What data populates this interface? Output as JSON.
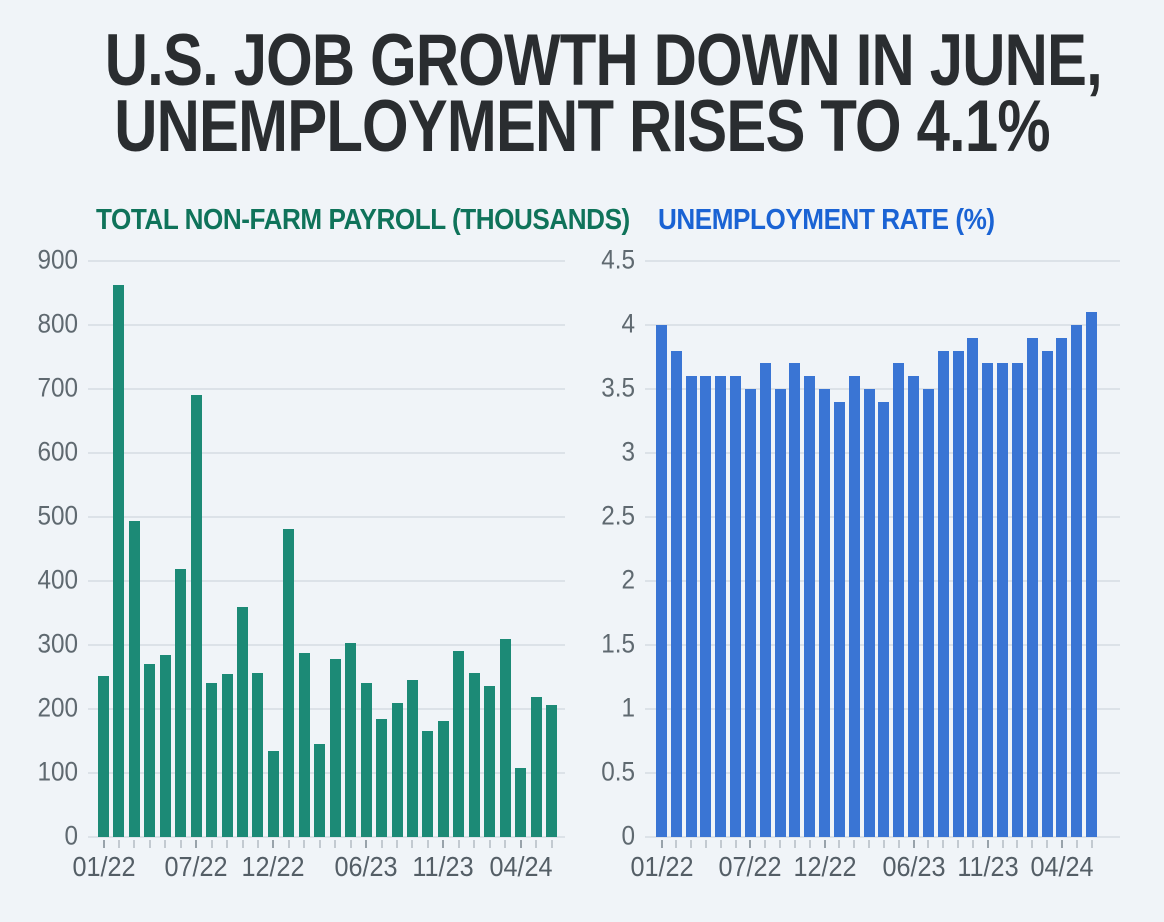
{
  "page": {
    "background": "#f0f4f8",
    "headline_color": "#2a2d30"
  },
  "title": {
    "line1": "U.S. JOB GROWTH DOWN IN JUNE,",
    "line2": "UNEMPLOYMENT RISES TO 4.1%"
  },
  "chart_data": [
    {
      "type": "bar",
      "title": "TOTAL NON-FARM PAYROLL (THOUSANDS)",
      "title_color": "#0f735a",
      "bar_color": "#1c8a76",
      "xlabel": "",
      "ylabel": "",
      "ylim": [
        0,
        900
      ],
      "y_tick_step": 100,
      "y_tick_labels": [
        "900",
        "800",
        "700",
        "600",
        "500",
        "400",
        "300",
        "200",
        "100",
        "0"
      ],
      "grid": true,
      "legend": "none",
      "categories": [
        "01/22",
        "02/22",
        "03/22",
        "04/22",
        "05/22",
        "06/22",
        "07/22",
        "08/22",
        "09/22",
        "10/22",
        "11/22",
        "12/22",
        "01/23",
        "02/23",
        "03/23",
        "04/23",
        "05/23",
        "06/23",
        "07/23",
        "08/23",
        "09/23",
        "10/23",
        "11/23",
        "12/23",
        "01/24",
        "02/24",
        "03/24",
        "04/24",
        "05/24",
        "06/24"
      ],
      "values": [
        252,
        862,
        493,
        271,
        285,
        419,
        690,
        241,
        254,
        359,
        257,
        135,
        482,
        287,
        146,
        278,
        303,
        240,
        184,
        210,
        246,
        165,
        182,
        290,
        256,
        236,
        310,
        108,
        218,
        206
      ],
      "x_tick_labels": [
        {
          "index": 0,
          "label": "01/22"
        },
        {
          "index": 6,
          "label": "07/22"
        },
        {
          "index": 11,
          "label": "12/22"
        },
        {
          "index": 17,
          "label": "06/23"
        },
        {
          "index": 22,
          "label": "11/23"
        },
        {
          "index": 27,
          "label": "04/24"
        }
      ]
    },
    {
      "type": "bar",
      "title": "UNEMPLOYMENT RATE (%)",
      "title_color": "#1a63d4",
      "bar_color": "#3a75d4",
      "xlabel": "",
      "ylabel": "",
      "ylim": [
        0,
        4.5
      ],
      "y_tick_step": 0.5,
      "y_tick_labels": [
        "4.5",
        "4",
        "3.5",
        "3",
        "2.5",
        "2",
        "1.5",
        "1",
        "0.5",
        "0"
      ],
      "grid": true,
      "legend": "none",
      "categories": [
        "01/22",
        "02/22",
        "03/22",
        "04/22",
        "05/22",
        "06/22",
        "07/22",
        "08/22",
        "09/22",
        "10/22",
        "11/22",
        "12/22",
        "01/23",
        "02/23",
        "03/23",
        "04/23",
        "05/23",
        "06/23",
        "07/23",
        "08/23",
        "09/23",
        "10/23",
        "11/23",
        "12/23",
        "01/24",
        "02/24",
        "03/24",
        "04/24",
        "05/24",
        "06/24"
      ],
      "values": [
        4.0,
        3.8,
        3.6,
        3.6,
        3.6,
        3.6,
        3.5,
        3.7,
        3.5,
        3.7,
        3.6,
        3.5,
        3.4,
        3.6,
        3.5,
        3.4,
        3.7,
        3.6,
        3.5,
        3.8,
        3.8,
        3.9,
        3.7,
        3.7,
        3.7,
        3.9,
        3.8,
        3.9,
        4.0,
        4.1
      ],
      "x_tick_labels": [
        {
          "index": 0,
          "label": "01/22"
        },
        {
          "index": 6,
          "label": "07/22"
        },
        {
          "index": 11,
          "label": "12/22"
        },
        {
          "index": 17,
          "label": "06/23"
        },
        {
          "index": 22,
          "label": "11/23"
        },
        {
          "index": 27,
          "label": "04/24"
        }
      ]
    }
  ]
}
